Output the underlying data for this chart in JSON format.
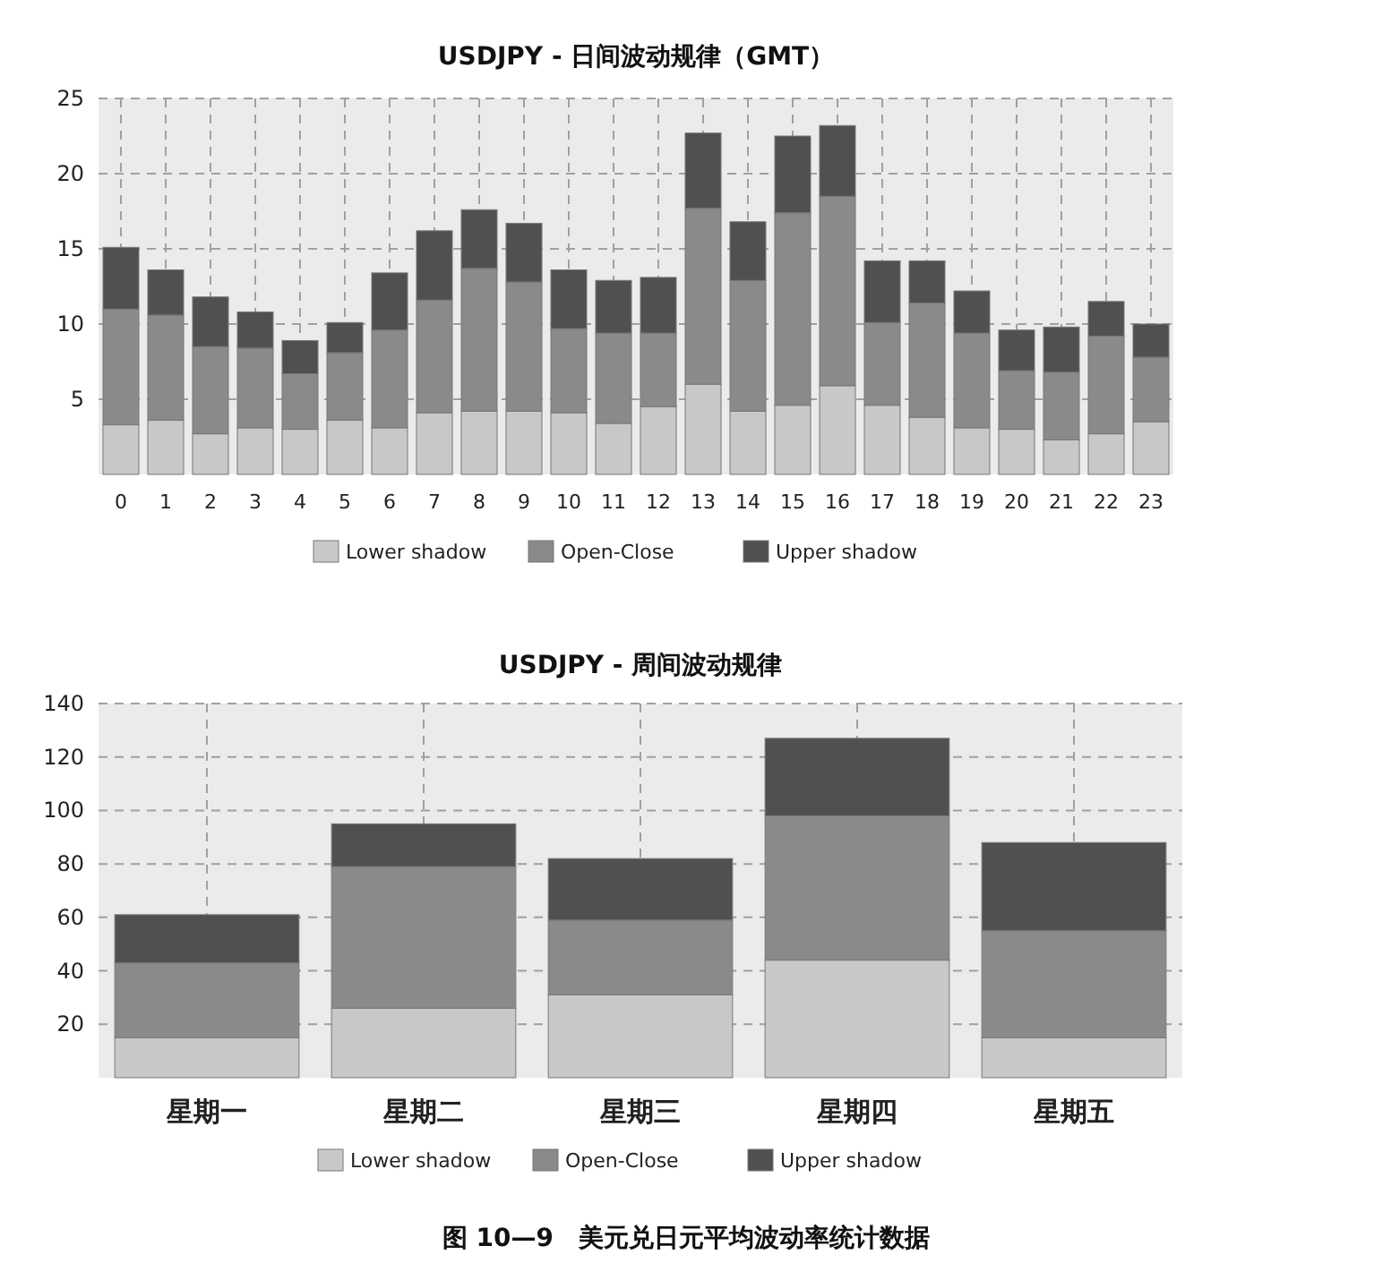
{
  "chart_data": [
    {
      "type": "bar",
      "title": "USDJPY - 日间波动规律（GMT）",
      "stacked": true,
      "grid": true,
      "legend": "bottom",
      "categories": [
        "0",
        "1",
        "2",
        "3",
        "4",
        "5",
        "6",
        "7",
        "8",
        "9",
        "10",
        "11",
        "12",
        "13",
        "14",
        "15",
        "16",
        "17",
        "18",
        "19",
        "20",
        "21",
        "22",
        "23"
      ],
      "ylim": [
        0,
        25
      ],
      "yticks": [
        5,
        10,
        15,
        20,
        25
      ],
      "series": [
        {
          "name": "Lower shadow",
          "color": "#c8c8c8",
          "values": [
            3.3,
            3.6,
            2.7,
            3.1,
            3.0,
            3.6,
            3.1,
            4.1,
            4.2,
            4.2,
            4.1,
            3.4,
            4.5,
            6.0,
            4.2,
            4.6,
            5.9,
            4.6,
            3.8,
            3.1,
            3.0,
            2.3,
            2.7,
            3.5
          ]
        },
        {
          "name": "Open-Close",
          "color": "#8a8a8a",
          "values": [
            7.7,
            7.0,
            5.8,
            5.3,
            3.7,
            4.5,
            6.5,
            7.5,
            9.5,
            8.6,
            5.6,
            6.0,
            4.9,
            11.7,
            8.7,
            12.8,
            12.6,
            5.5,
            7.6,
            6.3,
            3.9,
            4.5,
            6.5,
            4.3
          ]
        },
        {
          "name": "Upper shadow",
          "color": "#505050",
          "values": [
            4.1,
            3.0,
            3.3,
            2.4,
            2.2,
            2.0,
            3.8,
            4.6,
            3.9,
            3.9,
            3.9,
            3.5,
            3.7,
            5.0,
            3.9,
            5.1,
            4.7,
            4.1,
            2.8,
            2.8,
            2.7,
            3.0,
            2.3,
            2.2
          ]
        }
      ]
    },
    {
      "type": "bar",
      "title": "USDJPY - 周间波动规律",
      "stacked": true,
      "grid": true,
      "legend": "bottom",
      "categories": [
        "星期一",
        "星期二",
        "星期三",
        "星期四",
        "星期五"
      ],
      "ylim": [
        0,
        140
      ],
      "yticks": [
        20,
        40,
        60,
        80,
        100,
        120,
        140
      ],
      "series": [
        {
          "name": "Lower shadow",
          "color": "#c8c8c8",
          "values": [
            15,
            26,
            31,
            44,
            15
          ]
        },
        {
          "name": "Open-Close",
          "color": "#8a8a8a",
          "values": [
            28,
            53,
            28,
            54,
            40
          ]
        },
        {
          "name": "Upper shadow",
          "color": "#505050",
          "values": [
            18,
            16,
            23,
            29,
            33
          ]
        }
      ],
      "annotations": [
        "图 10—9　美元兑日元平均波动率统计数据"
      ]
    }
  ]
}
